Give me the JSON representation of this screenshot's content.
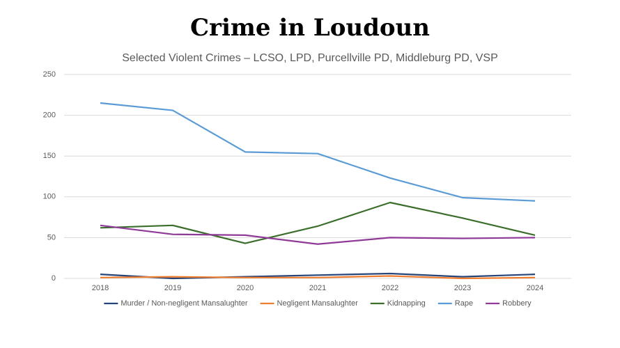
{
  "chart_data": {
    "type": "line",
    "title": "Crime in Loudoun",
    "subtitle": "Selected Violent Crimes – LCSO, LPD, Purcellville PD, Middleburg PD, VSP",
    "categories": [
      "2018",
      "2019",
      "2020",
      "2021",
      "2022",
      "2023",
      "2024"
    ],
    "series": [
      {
        "name": "Murder / Non-negligent Mansalughter",
        "color": "#264478",
        "values": [
          5,
          0,
          2,
          4,
          6,
          2,
          5
        ]
      },
      {
        "name": "Negligent Mansalughter",
        "color": "#ed7d31",
        "values": [
          1,
          2,
          1,
          1,
          3,
          0,
          1
        ]
      },
      {
        "name": "Kidnapping",
        "color": "#3b6e2b",
        "values": [
          62,
          65,
          43,
          64,
          93,
          74,
          53
        ]
      },
      {
        "name": "Rape",
        "color": "#5b9bd5",
        "values": [
          215,
          206,
          155,
          153,
          123,
          99,
          95
        ]
      },
      {
        "name": "Robbery",
        "color": "#8e3a96",
        "values": [
          65,
          54,
          53,
          42,
          50,
          49,
          50
        ]
      }
    ],
    "ylim": [
      0,
      250
    ],
    "yticks": [
      0,
      50,
      100,
      150,
      200,
      250
    ],
    "grid": true,
    "legend": "bottom"
  }
}
